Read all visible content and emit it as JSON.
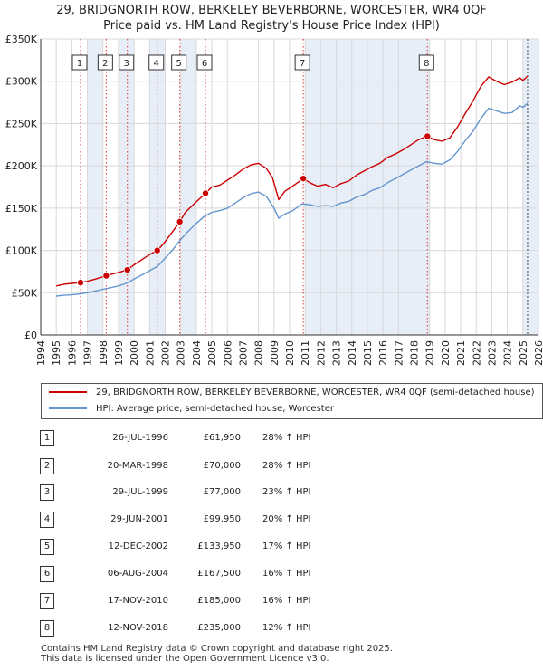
{
  "header": {
    "title_line1": "29, BRIDGNORTH ROW, BERKELEY BEVERBORNE, WORCESTER, WR4 0QF",
    "title_line2": "Price paid vs. HM Land Registry's House Price Index (HPI)"
  },
  "legend": {
    "property_label": "29, BRIDGNORTH ROW, BERKELEY BEVERBORNE, WORCESTER, WR4 0QF (semi-detached house)",
    "hpi_label": "HPI: Average price, semi-detached house, Worcester"
  },
  "colors": {
    "property": "#cc0000",
    "hpi": "#6495cd",
    "shade": "#e8eef8",
    "grid": "#d8d8d8"
  },
  "chart_data": {
    "type": "line",
    "xlabel": "",
    "ylabel": "",
    "xlim": [
      1994,
      2026
    ],
    "ylim": [
      0,
      350000
    ],
    "grid": true,
    "x_ticks": [
      "1994",
      "1995",
      "1996",
      "1997",
      "1998",
      "1999",
      "2000",
      "2001",
      "2002",
      "2003",
      "2004",
      "2005",
      "2006",
      "2007",
      "2008",
      "2009",
      "2010",
      "2011",
      "2012",
      "2013",
      "2014",
      "2015",
      "2016",
      "2017",
      "2018",
      "2019",
      "2020",
      "2021",
      "2022",
      "2023",
      "2024",
      "2025",
      "2026"
    ],
    "y_ticks": [
      {
        "value": 0,
        "label": "£0"
      },
      {
        "value": 50000,
        "label": "£50K"
      },
      {
        "value": 100000,
        "label": "£100K"
      },
      {
        "value": 150000,
        "label": "£150K"
      },
      {
        "value": 200000,
        "label": "£200K"
      },
      {
        "value": 250000,
        "label": "£250K"
      },
      {
        "value": 300000,
        "label": "£300K"
      },
      {
        "value": 350000,
        "label": "£350K"
      }
    ],
    "shaded_years": [
      [
        1997,
        1998
      ],
      [
        1999,
        2000
      ],
      [
        2001,
        2002
      ],
      [
        2003,
        2004
      ],
      [
        2011,
        2019
      ],
      [
        2025,
        2026
      ]
    ],
    "data_end_x": 2025.3,
    "series": [
      {
        "name": "29, BRIDGNORTH ROW, BERKELEY BEVERBORNE, WORCESTER, WR4 0QF (semi-detached house)",
        "color_key": "property",
        "x": [
          1995.0,
          1995.5,
          1996.0,
          1996.56,
          1997.0,
          1997.5,
          1998.21,
          1998.6,
          1999.0,
          1999.57,
          2000.0,
          2000.5,
          2001.0,
          2001.49,
          2001.9,
          2002.3,
          2002.94,
          2003.3,
          2003.8,
          2004.59,
          2005.0,
          2005.5,
          2006.0,
          2006.5,
          2007.0,
          2007.5,
          2008.0,
          2008.5,
          2008.9,
          2009.3,
          2009.7,
          2010.2,
          2010.88,
          2011.3,
          2011.8,
          2012.3,
          2012.8,
          2013.3,
          2013.8,
          2014.3,
          2014.8,
          2015.3,
          2015.8,
          2016.3,
          2016.8,
          2017.3,
          2017.8,
          2018.3,
          2018.86,
          2019.3,
          2019.8,
          2020.3,
          2020.8,
          2021.3,
          2021.8,
          2022.3,
          2022.8,
          2023.3,
          2023.8,
          2024.3,
          2024.8,
          2025.0,
          2025.3
        ],
        "y": [
          58000,
          60000,
          61000,
          61950,
          63500,
          66000,
          70000,
          72000,
          74000,
          77000,
          83000,
          89000,
          95000,
          99950,
          108000,
          118000,
          133950,
          145000,
          154000,
          167500,
          175000,
          177000,
          183000,
          189000,
          196000,
          201000,
          203000,
          197000,
          186000,
          160000,
          170000,
          176000,
          185000,
          180000,
          176000,
          178000,
          174000,
          179000,
          182000,
          189000,
          194000,
          199000,
          203000,
          210000,
          214000,
          219000,
          225000,
          231000,
          235000,
          231000,
          229000,
          233000,
          246000,
          262000,
          277000,
          294000,
          305000,
          300000,
          296000,
          299000,
          304000,
          301000,
          306000
        ]
      },
      {
        "name": "HPI: Average price, semi-detached house, Worcester",
        "color_key": "hpi",
        "x": [
          1995.0,
          1995.5,
          1996.0,
          1996.5,
          1997.0,
          1997.5,
          1998.0,
          1998.5,
          1999.0,
          1999.5,
          2000.0,
          2000.5,
          2001.0,
          2001.5,
          2002.0,
          2002.5,
          2003.0,
          2003.5,
          2004.0,
          2004.5,
          2005.0,
          2005.5,
          2006.0,
          2006.5,
          2007.0,
          2007.5,
          2008.0,
          2008.5,
          2009.0,
          2009.3,
          2009.7,
          2010.2,
          2010.8,
          2011.3,
          2011.8,
          2012.3,
          2012.8,
          2013.3,
          2013.8,
          2014.3,
          2014.8,
          2015.3,
          2015.8,
          2016.3,
          2016.8,
          2017.3,
          2017.8,
          2018.3,
          2018.8,
          2019.3,
          2019.8,
          2020.3,
          2020.8,
          2021.3,
          2021.8,
          2022.3,
          2022.8,
          2023.3,
          2023.8,
          2024.3,
          2024.8,
          2025.0,
          2025.3
        ],
        "y": [
          46000,
          47000,
          47500,
          48500,
          50000,
          52000,
          54000,
          56000,
          58000,
          61000,
          66000,
          71000,
          76000,
          81000,
          91000,
          101000,
          113000,
          123000,
          132000,
          140000,
          145000,
          147000,
          150000,
          156000,
          162000,
          167000,
          169000,
          164000,
          150000,
          138000,
          143000,
          147000,
          155000,
          154000,
          152000,
          153000,
          152000,
          156000,
          158000,
          163000,
          166000,
          171000,
          174000,
          180000,
          185000,
          190000,
          195000,
          200000,
          205000,
          203000,
          202000,
          207000,
          217000,
          230000,
          241000,
          256000,
          268000,
          265000,
          262000,
          263000,
          271000,
          269000,
          274000
        ]
      }
    ],
    "sale_markers": [
      {
        "id": "1",
        "x": 1996.56,
        "y": 61950
      },
      {
        "id": "2",
        "x": 1998.21,
        "y": 70000
      },
      {
        "id": "3",
        "x": 1999.57,
        "y": 77000
      },
      {
        "id": "4",
        "x": 2001.49,
        "y": 99950
      },
      {
        "id": "5",
        "x": 2002.94,
        "y": 133950
      },
      {
        "id": "6",
        "x": 2004.59,
        "y": 167500
      },
      {
        "id": "7",
        "x": 2010.88,
        "y": 185000
      },
      {
        "id": "8",
        "x": 2018.86,
        "y": 235000
      }
    ]
  },
  "sales": [
    {
      "num": "1",
      "date": "26-JUL-1996",
      "price": "£61,950",
      "hpi": "28% ↑ HPI"
    },
    {
      "num": "2",
      "date": "20-MAR-1998",
      "price": "£70,000",
      "hpi": "28% ↑ HPI"
    },
    {
      "num": "3",
      "date": "29-JUL-1999",
      "price": "£77,000",
      "hpi": "23% ↑ HPI"
    },
    {
      "num": "4",
      "date": "29-JUN-2001",
      "price": "£99,950",
      "hpi": "20% ↑ HPI"
    },
    {
      "num": "5",
      "date": "12-DEC-2002",
      "price": "£133,950",
      "hpi": "17% ↑ HPI"
    },
    {
      "num": "6",
      "date": "06-AUG-2004",
      "price": "£167,500",
      "hpi": "16% ↑ HPI"
    },
    {
      "num": "7",
      "date": "17-NOV-2010",
      "price": "£185,000",
      "hpi": "16% ↑ HPI"
    },
    {
      "num": "8",
      "date": "12-NOV-2018",
      "price": "£235,000",
      "hpi": "12% ↑ HPI"
    }
  ],
  "footer": {
    "line1": "Contains HM Land Registry data © Crown copyright and database right 2025.",
    "line2": "This data is licensed under the Open Government Licence v3.0."
  }
}
